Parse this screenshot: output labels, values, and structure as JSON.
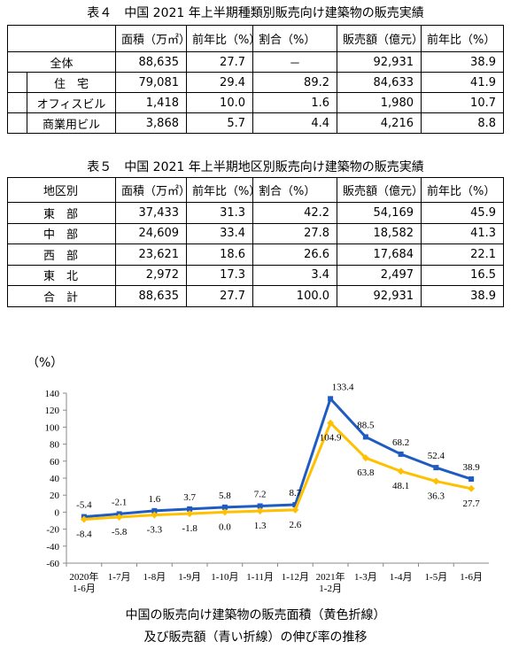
{
  "table4": {
    "title": "表４　中国 2021 年上半期種類別販売向け建築物の販売実績",
    "headers": [
      "面積（万㎡）",
      "前年比（%）",
      "割合（%）",
      "販売額（億元）",
      "前年比（%）"
    ],
    "rows": [
      {
        "label": "全体",
        "cells": [
          "88,635",
          "27.7",
          "－",
          "92,931",
          "38.9"
        ]
      },
      {
        "label": "住　宅",
        "cells": [
          "79,081",
          "29.4",
          "89.2",
          "84,633",
          "41.9"
        ]
      },
      {
        "label": "オフィスビル",
        "cells": [
          "1,418",
          "10.0",
          "1.6",
          "1,980",
          "10.7"
        ]
      },
      {
        "label": "商業用ビル",
        "cells": [
          "3,868",
          "5.7",
          "4.4",
          "4,216",
          "8.8"
        ]
      }
    ]
  },
  "table5": {
    "title": "表５　中国 2021 年上半期地区別販売向け建築物の販売実績",
    "headers": [
      "地区別",
      "面積（万㎡）",
      "前年比（%）",
      "割合（%）",
      "販売額（億元）",
      "前年比（%）"
    ],
    "rows": [
      {
        "label": "東　部",
        "cells": [
          "37,433",
          "31.3",
          "42.2",
          "54,169",
          "45.9"
        ]
      },
      {
        "label": "中　部",
        "cells": [
          "24,609",
          "33.4",
          "27.8",
          "18,582",
          "41.3"
        ]
      },
      {
        "label": "西　部",
        "cells": [
          "23,621",
          "18.6",
          "26.6",
          "17,684",
          "22.1"
        ]
      },
      {
        "label": "東　北",
        "cells": [
          "2,972",
          "17.3",
          "3.4",
          "2,497",
          "16.5"
        ]
      },
      {
        "label": "合　計",
        "cells": [
          "88,635",
          "27.7",
          "100.0",
          "92,931",
          "38.9"
        ]
      }
    ]
  },
  "chart_data": {
    "type": "line",
    "title": [
      "中国の販売向け建築物の販売面積（黄色折線）",
      "及び販売額（青い折線）の伸び率の推移"
    ],
    "ylabel": "（%）",
    "categories": [
      "2020年\n1-6月",
      "1-7月",
      "1-8月",
      "1-9月",
      "1-10月",
      "1-11月",
      "1-12月",
      "2021年\n1-2月",
      "1-3月",
      "1-4月",
      "1-5月",
      "1-6月"
    ],
    "series": [
      {
        "color": "#1f5bc0",
        "values": [
          -5.4,
          -2.1,
          1.6,
          3.7,
          5.8,
          7.2,
          8.7,
          133.4,
          88.5,
          68.2,
          52.4,
          38.9
        ]
      },
      {
        "color": "#ffc000",
        "values": [
          -8.4,
          -5.8,
          -3.3,
          -1.8,
          0,
          1.3,
          2.6,
          104.9,
          63.8,
          48.1,
          36.3,
          27.7
        ],
        "value_labels": [
          "-8.4",
          "-5.8",
          "-3.3",
          "-1.8",
          "0.0",
          "1.3",
          "2.6",
          "104.9",
          "63.8",
          "48.1",
          "36.3",
          "27.7"
        ]
      }
    ],
    "ylim": [
      -60,
      140
    ],
    "yticks": [
      -60,
      -40,
      -20,
      0,
      20,
      40,
      60,
      80,
      100,
      120,
      140
    ],
    "grid": false
  }
}
